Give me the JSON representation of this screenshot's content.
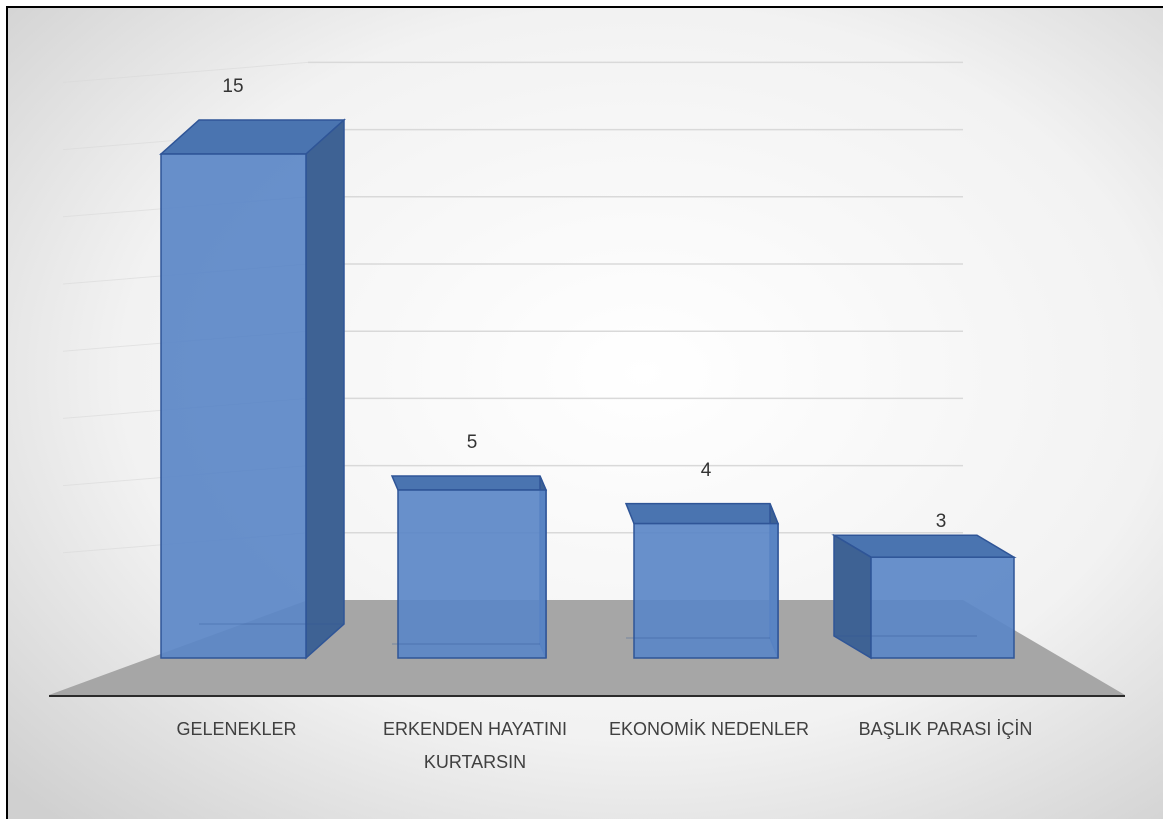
{
  "chart_data": {
    "type": "bar",
    "style": "3d-column",
    "categories": [
      "GELENEKLER",
      "ERKENDEN HAYATINI KURTARSIN",
      "EKONOMİK NEDENLER",
      "BAŞLIK PARASI İÇİN"
    ],
    "category_lines": [
      [
        "GELENEKLER"
      ],
      [
        "ERKENDEN HAYATINI",
        "KURTARSIN"
      ],
      [
        "EKONOMİK NEDENLER"
      ],
      [
        "BAŞLIK PARASI İÇİN"
      ]
    ],
    "values": [
      15,
      5,
      4,
      3
    ],
    "data_labels": [
      "15",
      "5",
      "4",
      "3"
    ],
    "title": "",
    "xlabel": "",
    "ylabel": "",
    "ylim": [
      0,
      16
    ],
    "grid": true,
    "legend": "none",
    "colors": {
      "bar_front": "#5b87c7",
      "bar_side": "#3e6294",
      "bar_top": "#4a74b0",
      "bar_edge": "#2f5597",
      "floor": "#a6a6a6",
      "gridline": "#d9d9d9",
      "background_center": "#ffffff",
      "background_edge": "#d6d6d6"
    }
  }
}
